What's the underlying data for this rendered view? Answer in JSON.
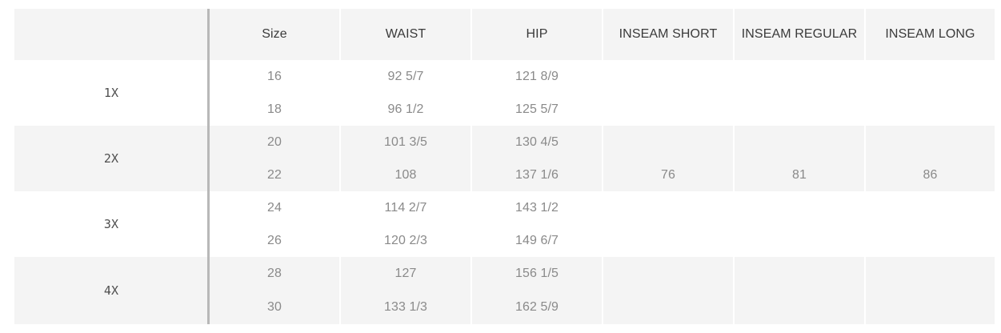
{
  "table": {
    "header": {
      "corner": "",
      "columns": [
        "Size",
        "WAIST",
        "HIP",
        "INSEAM SHORT",
        "INSEAM REGULAR",
        "INSEAM LONG"
      ]
    },
    "groups": [
      {
        "label": "1X",
        "rows": [
          {
            "size": "16",
            "waist": "92 5/7",
            "hip": "121 8/9"
          },
          {
            "size": "18",
            "waist": "96 1/2",
            "hip": "125 5/7"
          }
        ]
      },
      {
        "label": "2X",
        "rows": [
          {
            "size": "20",
            "waist": "101 3/5",
            "hip": "130 4/5"
          },
          {
            "size": "22",
            "waist": "108",
            "hip": "137 1/6"
          }
        ]
      },
      {
        "label": "3X",
        "rows": [
          {
            "size": "24",
            "waist": "114 2/7",
            "hip": "143 1/2"
          },
          {
            "size": "26",
            "waist": "120 2/3",
            "hip": "149 6/7"
          }
        ]
      },
      {
        "label": "4X",
        "rows": [
          {
            "size": "28",
            "waist": "127",
            "hip": "156 1/5"
          },
          {
            "size": "30",
            "waist": "133 1/3",
            "hip": "162 5/9"
          }
        ]
      }
    ],
    "inseam": {
      "short": "76",
      "regular": "81",
      "long": "86"
    }
  },
  "colors": {
    "band_shaded": "#f4f4f4",
    "band_plain": "#ffffff",
    "separator": "#b8b8b8",
    "header_text": "#3a3a3a",
    "value_text": "#8a8a8a"
  }
}
